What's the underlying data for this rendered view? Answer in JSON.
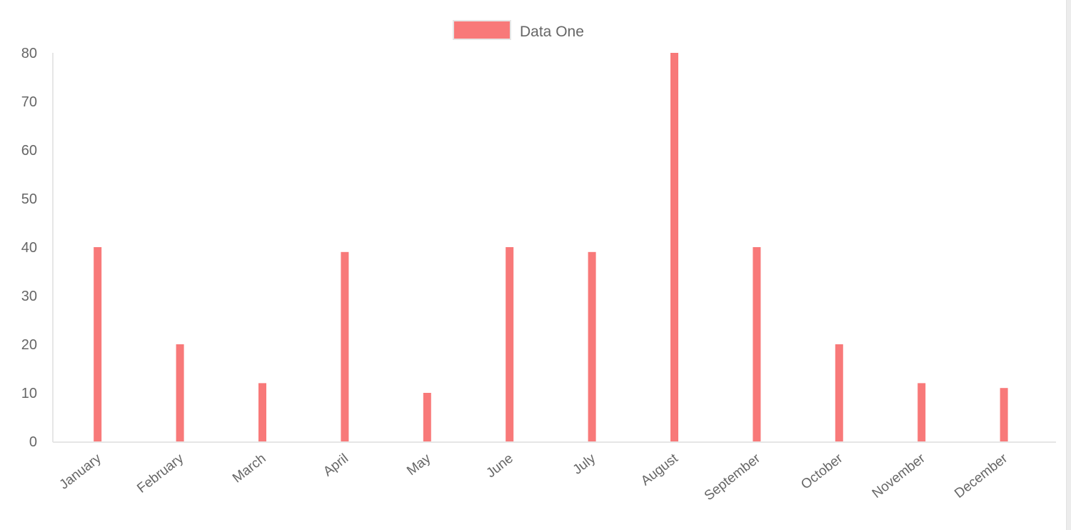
{
  "chart_data": {
    "type": "bar",
    "categories": [
      "January",
      "February",
      "March",
      "April",
      "May",
      "June",
      "July",
      "August",
      "September",
      "October",
      "November",
      "December"
    ],
    "series": [
      {
        "name": "Data One",
        "color": "#f87979",
        "values": [
          40,
          20,
          12,
          39,
          10,
          40,
          39,
          80,
          40,
          20,
          12,
          11
        ]
      }
    ],
    "yticks": [
      0,
      10,
      20,
      30,
      40,
      50,
      60,
      70,
      80
    ],
    "ylim": [
      0,
      80
    ],
    "legend_position": "top",
    "grid": false,
    "xlabel": "",
    "ylabel": ""
  }
}
